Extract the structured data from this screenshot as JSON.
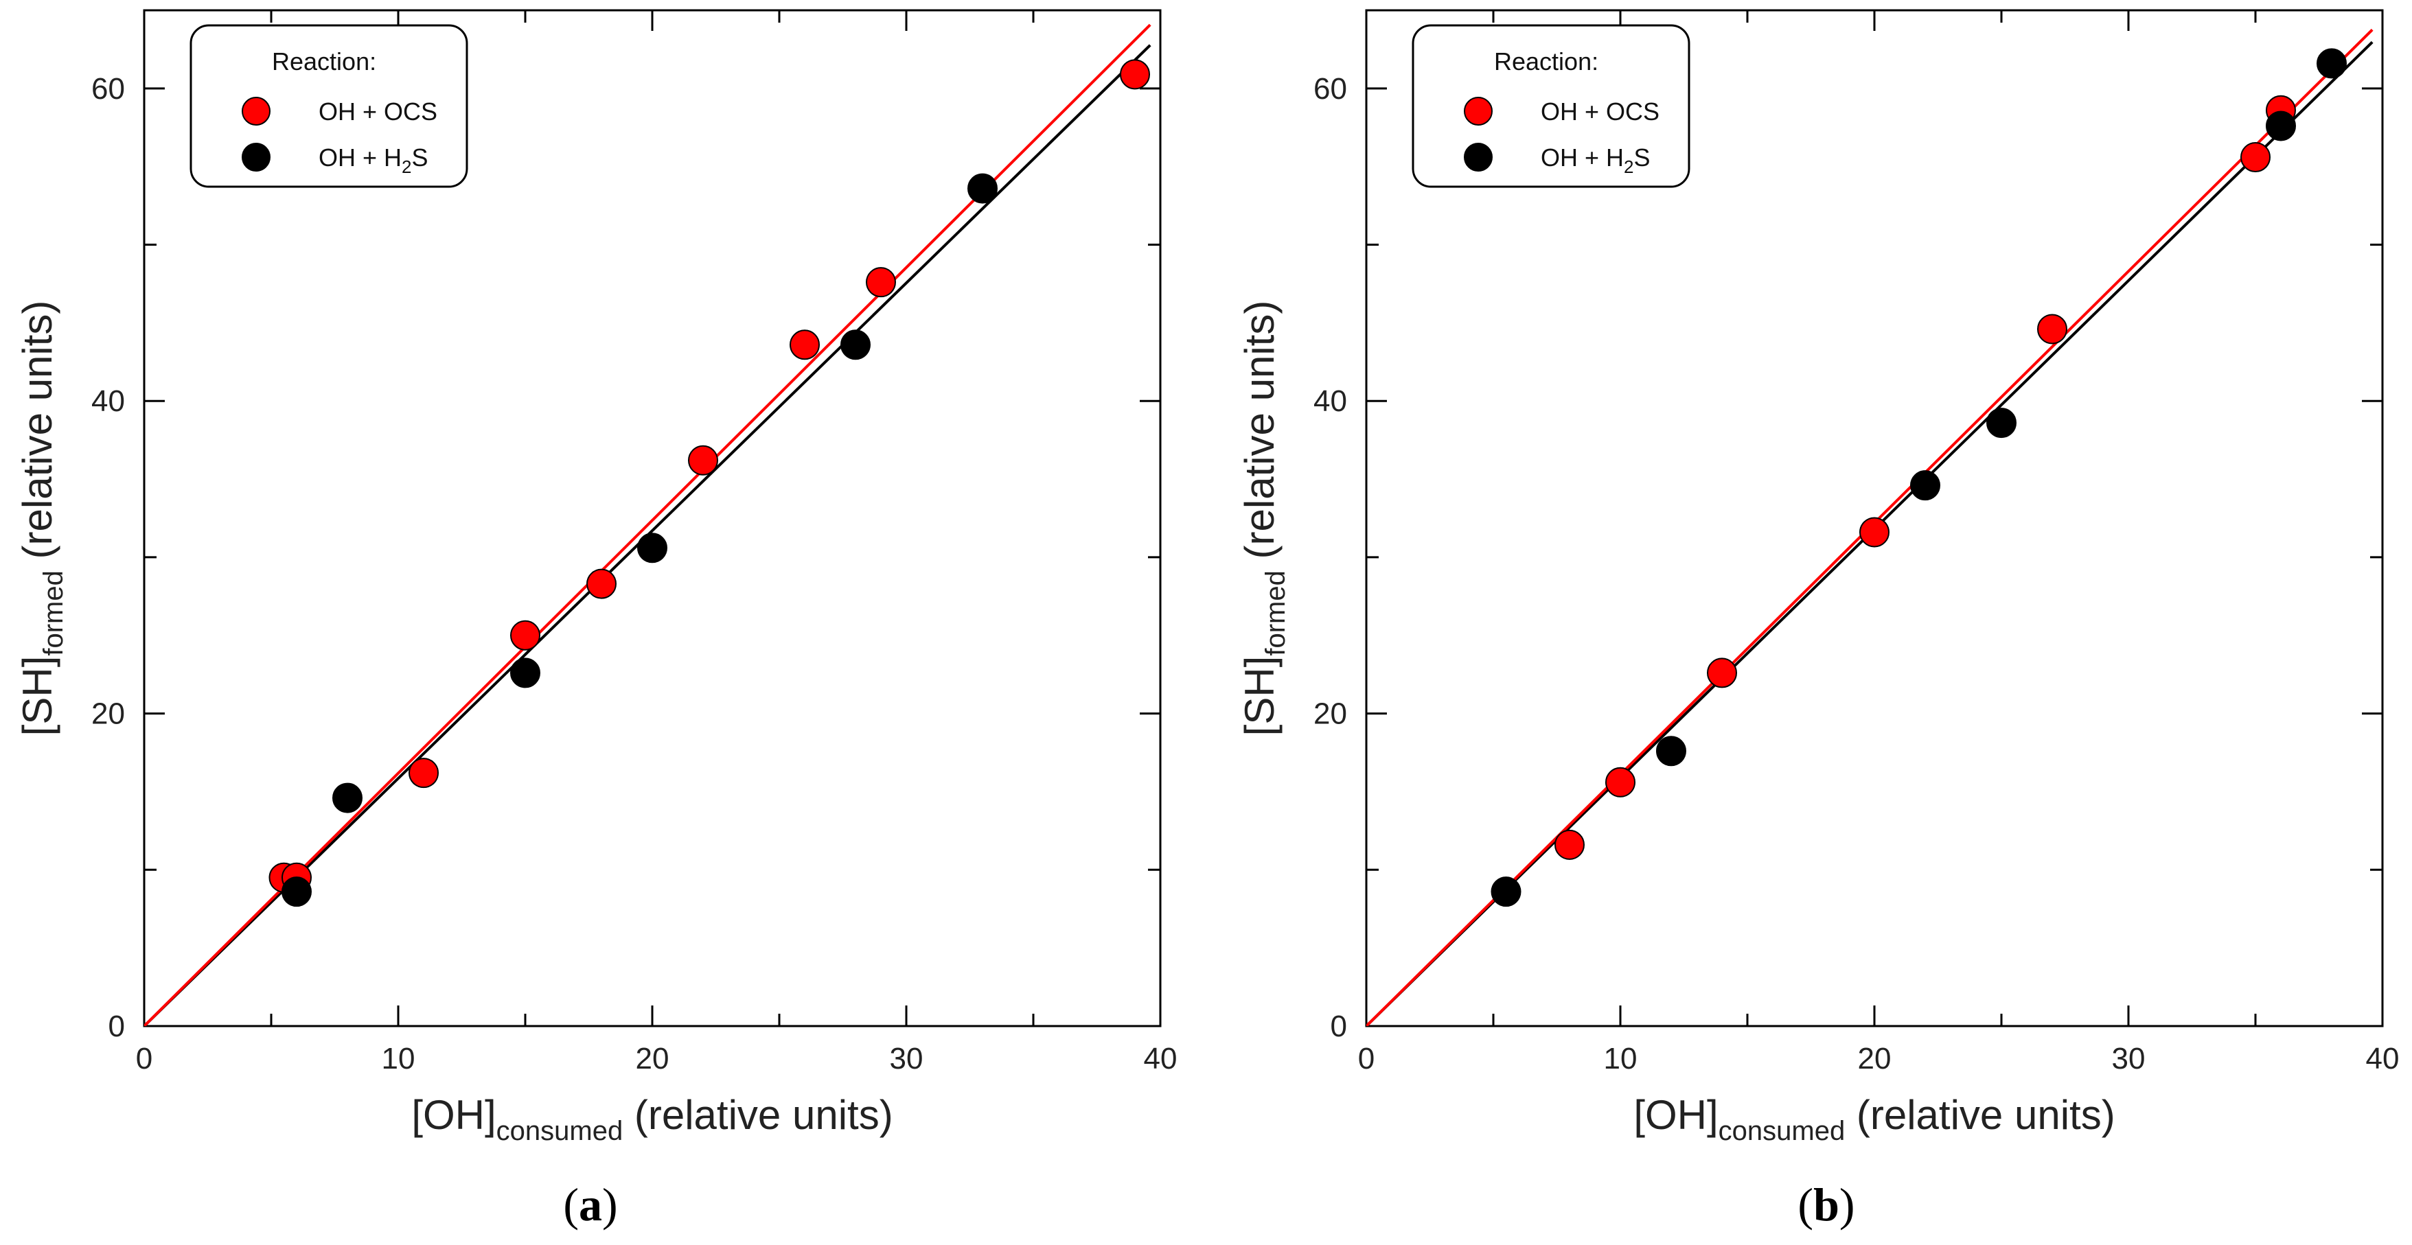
{
  "chart_data": [
    {
      "type": "scatter",
      "panel_label": "a",
      "xlabel_main": "[OH]",
      "xlabel_sub": "consumed",
      "xlabel_rest": " (relative units)",
      "ylabel_main": "[SH]",
      "ylabel_sub": "formed",
      "ylabel_rest": " (relative units)",
      "xlim": [
        0,
        40
      ],
      "ylim": [
        0,
        65
      ],
      "xticks": [
        0,
        10,
        20,
        30,
        40
      ],
      "yticks": [
        0,
        20,
        40,
        60
      ],
      "legend": {
        "title": "Reaction:",
        "position": "top-left"
      },
      "series": [
        {
          "name_main": "OH + OCS",
          "name_sub": "",
          "name_tail": "",
          "color": "#ff0000",
          "x": [
            5.5,
            6.0,
            11,
            15,
            18,
            22,
            26,
            29,
            39
          ],
          "y": [
            9.5,
            9.5,
            16.2,
            25.0,
            28.3,
            36.2,
            43.6,
            47.6,
            60.9
          ],
          "fit_slope": 1.618
        },
        {
          "name_main": "OH + H",
          "name_sub": "2",
          "name_tail": "S",
          "color": "#000000",
          "x": [
            6,
            8,
            15,
            20,
            28,
            33
          ],
          "y": [
            8.6,
            14.6,
            22.6,
            30.6,
            43.6,
            53.6
          ],
          "fit_slope": 1.585
        }
      ]
    },
    {
      "type": "scatter",
      "panel_label": "b",
      "xlabel_main": "[OH]",
      "xlabel_sub": "consumed",
      "xlabel_rest": " (relative units)",
      "ylabel_main": "[SH]",
      "ylabel_sub": "formed",
      "ylabel_rest": " (relative units)",
      "xlim": [
        0,
        40
      ],
      "ylim": [
        0,
        65
      ],
      "xticks": [
        0,
        10,
        20,
        30,
        40
      ],
      "yticks": [
        0,
        20,
        40,
        60
      ],
      "legend": {
        "title": "Reaction:",
        "position": "top-left"
      },
      "series": [
        {
          "name_main": "OH + OCS",
          "name_sub": "",
          "name_tail": "",
          "color": "#ff0000",
          "x": [
            8,
            10,
            14,
            20,
            27,
            35,
            36
          ],
          "y": [
            11.6,
            15.6,
            22.6,
            31.6,
            44.6,
            55.6,
            58.6
          ],
          "fit_slope": 1.61
        },
        {
          "name_main": "OH + H",
          "name_sub": "2",
          "name_tail": "S",
          "color": "#000000",
          "x": [
            5.5,
            12,
            22,
            25,
            36,
            38
          ],
          "y": [
            8.6,
            17.6,
            34.6,
            38.6,
            57.6,
            61.6
          ],
          "fit_slope": 1.59
        }
      ]
    }
  ]
}
